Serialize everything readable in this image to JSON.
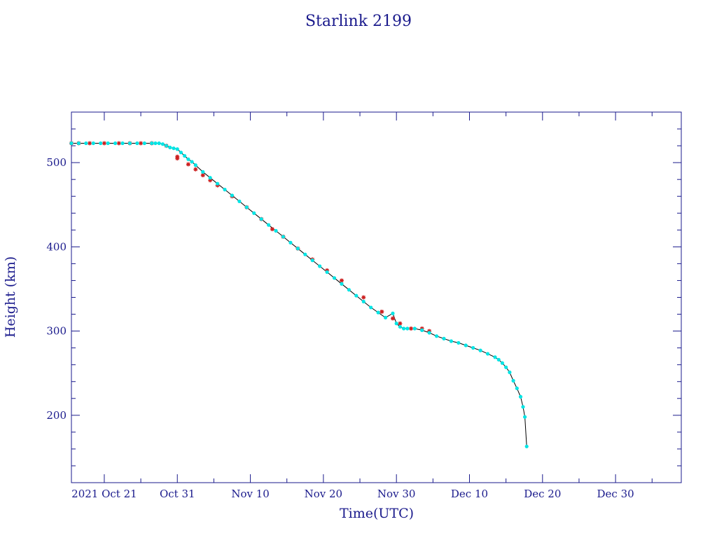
{
  "chart_data": {
    "type": "scatter",
    "title": "Starlink 2199",
    "xlabel": "Time(UTC)",
    "ylabel": "Height (km)",
    "x_ticks": [
      "2021 Oct 21",
      "Oct 31",
      "Nov 10",
      "Nov 20",
      "Nov 30",
      "Dec 10",
      "Dec 20",
      "Dec 30"
    ],
    "y_ticks": [
      200,
      300,
      400,
      500
    ],
    "ylim": [
      120,
      560
    ],
    "xlim": [
      "2021-10-16T12:00",
      "2022-01-08"
    ],
    "grid": false,
    "colors": {
      "axes": "#1a1a8c",
      "line": "#000000",
      "cyan_points": "#00e5e5",
      "red_points": "#cc2020"
    },
    "series": [
      {
        "marker": "cyan",
        "x": [
          "2021-10-16T12:00",
          "2021-10-17T12:00",
          "2021-10-18T12:00",
          "2021-10-19T12:00",
          "2021-10-20T12:00",
          "2021-10-21T12:00",
          "2021-10-22T12:00",
          "2021-10-23T12:00",
          "2021-10-24T12:00",
          "2021-10-25T12:00",
          "2021-10-26T12:00",
          "2021-10-27T12:00",
          "2021-10-28T00:00",
          "2021-10-28T12:00",
          "2021-10-29T00:00",
          "2021-10-29T12:00",
          "2021-10-30T00:00",
          "2021-10-30T12:00",
          "2021-10-31T00:00",
          "2021-10-31T12:00",
          "2021-11-01T00:00",
          "2021-11-01T12:00",
          "2021-11-02T00:00",
          "2021-11-02T12:00",
          "2021-11-03T12:00",
          "2021-11-04T12:00",
          "2021-11-05T12:00",
          "2021-11-06T12:00",
          "2021-11-07T12:00",
          "2021-11-08T12:00",
          "2021-11-09T12:00",
          "2021-11-10T12:00",
          "2021-11-11T12:00",
          "2021-11-12T12:00",
          "2021-11-13T12:00",
          "2021-11-14T12:00",
          "2021-11-15T12:00",
          "2021-11-16T12:00",
          "2021-11-17T12:00",
          "2021-11-18T12:00",
          "2021-11-19T12:00",
          "2021-11-20T12:00",
          "2021-11-21T12:00",
          "2021-11-22T12:00",
          "2021-11-23T12:00",
          "2021-11-24T12:00",
          "2021-11-25T12:00",
          "2021-11-26T12:00",
          "2021-11-27T12:00",
          "2021-11-28T12:00",
          "2021-11-29T12:00",
          "2021-11-30T00:00",
          "2021-11-30T12:00",
          "2021-12-01T00:00",
          "2021-12-01T12:00",
          "2021-12-02T12:00",
          "2021-12-03T12:00",
          "2021-12-04T12:00",
          "2021-12-05T12:00",
          "2021-12-06T12:00",
          "2021-12-07T12:00",
          "2021-12-08T12:00",
          "2021-12-09T12:00",
          "2021-12-10T12:00",
          "2021-12-11T12:00",
          "2021-12-12T12:00",
          "2021-12-13T12:00",
          "2021-12-14T00:00",
          "2021-12-14T12:00",
          "2021-12-15T00:00",
          "2021-12-15T12:00",
          "2021-12-16T00:00",
          "2021-12-16T12:00",
          "2021-12-17T00:00",
          "2021-12-17T08:00",
          "2021-12-17T14:00",
          "2021-12-17T20:00"
        ],
        "y": [
          523,
          523,
          523,
          523,
          523,
          523,
          523,
          523,
          523,
          523,
          523,
          523,
          523,
          523,
          522,
          520,
          518,
          517,
          516,
          512,
          508,
          504,
          501,
          497,
          489,
          482,
          475,
          468,
          461,
          454,
          447,
          440,
          433,
          426,
          419,
          412,
          405,
          398,
          391,
          384,
          377,
          370,
          363,
          356,
          349,
          342,
          335,
          328,
          322,
          316,
          321,
          309,
          305,
          303,
          303,
          303,
          301,
          298,
          294,
          291,
          288,
          286,
          283,
          280,
          277,
          273,
          269,
          266,
          262,
          257,
          251,
          241,
          232,
          222,
          210,
          198,
          163
        ]
      },
      {
        "marker": "red",
        "x": [
          "2021-10-16T12:00",
          "2021-10-17T12:00",
          "2021-10-19T00:00",
          "2021-10-21T00:00",
          "2021-10-23T00:00",
          "2021-10-24T12:00",
          "2021-10-26T00:00",
          "2021-10-27T12:00",
          "2021-10-29T12:00",
          "2021-10-31T00:00",
          "2021-10-31T00:00",
          "2021-11-01T12:00",
          "2021-11-02T12:00",
          "2021-11-03T12:00",
          "2021-11-04T12:00",
          "2021-11-05T12:00",
          "2021-11-07T12:00",
          "2021-11-09T12:00",
          "2021-11-11T12:00",
          "2021-11-13T00:00",
          "2021-11-14T12:00",
          "2021-11-16T12:00",
          "2021-11-18T12:00",
          "2021-11-20T12:00",
          "2021-11-22T12:00",
          "2021-11-25T12:00",
          "2021-11-28T00:00",
          "2021-11-29T12:00",
          "2021-11-30T12:00",
          "2021-12-02T00:00",
          "2021-12-03T12:00",
          "2021-12-04T12:00"
        ],
        "y": [
          523,
          523,
          523,
          523,
          523,
          523,
          523,
          523,
          520,
          507,
          505,
          498,
          492,
          485,
          479,
          473,
          460,
          447,
          433,
          421,
          412,
          398,
          385,
          372,
          360,
          340,
          323,
          315,
          309,
          303,
          303,
          300
        ]
      }
    ]
  }
}
